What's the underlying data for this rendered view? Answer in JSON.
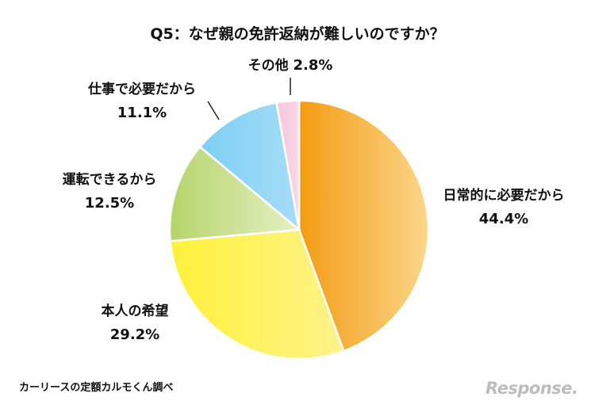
{
  "chart_data": {
    "type": "pie",
    "title": "Q5：なぜ親の免許返納が難しいのですか？",
    "slices": [
      {
        "label": "日常的に必要だから",
        "value": 44.4,
        "value_label": "44.4%",
        "color_start": "#f39c12",
        "color_end": "#fbd68a"
      },
      {
        "label": "本人の希望",
        "value": 29.2,
        "value_label": "29.2%",
        "color_start": "#fff13a",
        "color_end": "#fdf28a"
      },
      {
        "label": "運転できるから",
        "value": 12.5,
        "value_label": "12.5%",
        "color_start": "#b5d46a",
        "color_end": "#e6f0c5"
      },
      {
        "label": "仕事で必要だから",
        "value": 11.1,
        "value_label": "11.1%",
        "color_start": "#7ecff5",
        "color_end": "#a6dcf7"
      },
      {
        "label": "その他",
        "value": 2.8,
        "value_label": "2.8%",
        "color_start": "#f7c6dc",
        "color_end": "#f9d5e5"
      }
    ],
    "start": "top",
    "direction": "clockwise"
  },
  "source": "カーリースの定額カルモくん調べ",
  "logo_text": "Response."
}
